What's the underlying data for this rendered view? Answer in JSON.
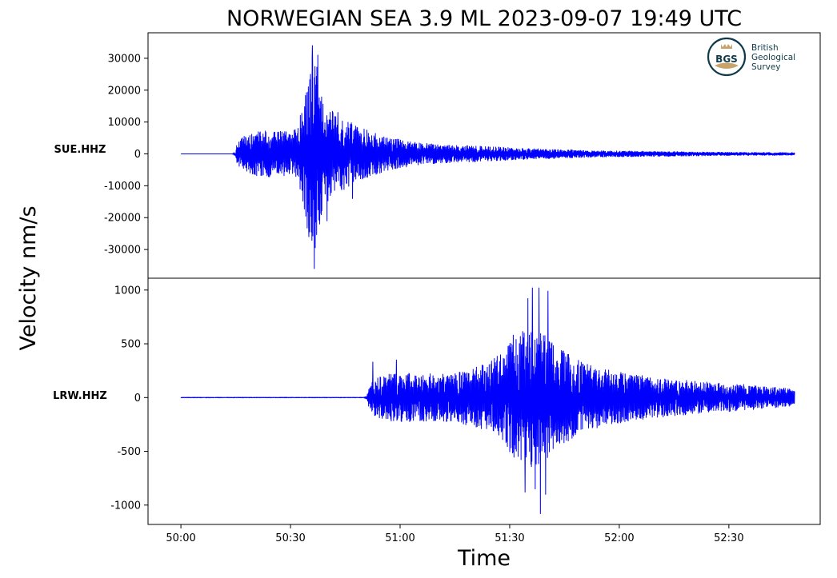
{
  "chart_data": [
    {
      "type": "line",
      "title": "NORWEGIAN SEA 3.9 ML   2023-09-07 19:49 UTC",
      "station": "SUE.HHZ",
      "ylabel": "Velocity nm/s",
      "ylim": [
        -39000,
        38000
      ],
      "yticks": [
        30000,
        20000,
        10000,
        0,
        -10000,
        -20000,
        -30000
      ],
      "ytick_labels": [
        "30000",
        "20000",
        "10000",
        "0",
        "-10000",
        "-20000",
        "-30000"
      ],
      "xlim": [
        -9,
        175
      ],
      "trace_start": 0,
      "trace_end": 168,
      "onset": 15,
      "line_color": "#0000ff",
      "envelope": [
        [
          0,
          0
        ],
        [
          14,
          0
        ],
        [
          15,
          2500
        ],
        [
          17,
          5500
        ],
        [
          21,
          7000
        ],
        [
          25,
          7500
        ],
        [
          29,
          7000
        ],
        [
          32,
          8000
        ],
        [
          34,
          20000
        ],
        [
          35,
          27000
        ],
        [
          36,
          33000
        ],
        [
          37,
          29000
        ],
        [
          38,
          22000
        ],
        [
          39,
          16000
        ],
        [
          41,
          14000
        ],
        [
          43,
          12000
        ],
        [
          45,
          11000
        ],
        [
          48,
          9000
        ],
        [
          52,
          7000
        ],
        [
          56,
          5500
        ],
        [
          60,
          4500
        ],
        [
          65,
          3500
        ],
        [
          70,
          3000
        ],
        [
          80,
          2500
        ],
        [
          90,
          2000
        ],
        [
          100,
          1500
        ],
        [
          115,
          1000
        ],
        [
          130,
          800
        ],
        [
          150,
          500
        ],
        [
          168,
          400
        ]
      ],
      "peaks": [
        {
          "t": 36.0,
          "v": 34000
        },
        {
          "t": 36.5,
          "v": -36000
        },
        {
          "t": 35.0,
          "v": -26000
        },
        {
          "t": 37.5,
          "v": 31000
        },
        {
          "t": 35.5,
          "v": 25000
        },
        {
          "t": 38.0,
          "v": -22000
        },
        {
          "t": 40.0,
          "v": -21000
        },
        {
          "t": 43.0,
          "v": 13000
        },
        {
          "t": 47.0,
          "v": -14000
        }
      ]
    },
    {
      "type": "line",
      "station": "LRW.HHZ",
      "xlabel": "Time",
      "ylim": [
        -1180,
        1110
      ],
      "yticks": [
        1000,
        500,
        0,
        -500,
        -1000
      ],
      "ytick_labels": [
        "1000",
        "500",
        "0",
        "-500",
        "-1000"
      ],
      "xlim": [
        -9,
        175
      ],
      "xticks": [
        0,
        30,
        60,
        90,
        120,
        150
      ],
      "xtick_labels": [
        "50:00",
        "50:30",
        "51:00",
        "51:30",
        "52:00",
        "52:30"
      ],
      "trace_start": 0,
      "trace_end": 168,
      "onset": 51,
      "line_color": "#0000ff",
      "envelope": [
        [
          0,
          8
        ],
        [
          50,
          8
        ],
        [
          51,
          60
        ],
        [
          53,
          180
        ],
        [
          57,
          220
        ],
        [
          62,
          230
        ],
        [
          68,
          220
        ],
        [
          75,
          230
        ],
        [
          80,
          270
        ],
        [
          84,
          330
        ],
        [
          88,
          420
        ],
        [
          91,
          550
        ],
        [
          94,
          640
        ],
        [
          97,
          650
        ],
        [
          100,
          580
        ],
        [
          103,
          480
        ],
        [
          107,
          380
        ],
        [
          112,
          300
        ],
        [
          118,
          250
        ],
        [
          125,
          210
        ],
        [
          135,
          170
        ],
        [
          145,
          140
        ],
        [
          155,
          120
        ],
        [
          165,
          90
        ],
        [
          168,
          70
        ]
      ],
      "peaks": [
        {
          "t": 96.2,
          "v": 1020
        },
        {
          "t": 98.0,
          "v": 1020
        },
        {
          "t": 100.5,
          "v": 990
        },
        {
          "t": 98.4,
          "v": -1080
        },
        {
          "t": 95.0,
          "v": 920
        },
        {
          "t": 94.2,
          "v": -880
        },
        {
          "t": 99.8,
          "v": -900
        },
        {
          "t": 97.0,
          "v": -850
        },
        {
          "t": 91.0,
          "v": 580
        },
        {
          "t": 52.5,
          "v": 330
        },
        {
          "t": 59.0,
          "v": 350
        }
      ]
    }
  ],
  "logo": {
    "badge_text": "BGS",
    "line1": "British",
    "line2": "Geological",
    "line3": "Survey"
  }
}
